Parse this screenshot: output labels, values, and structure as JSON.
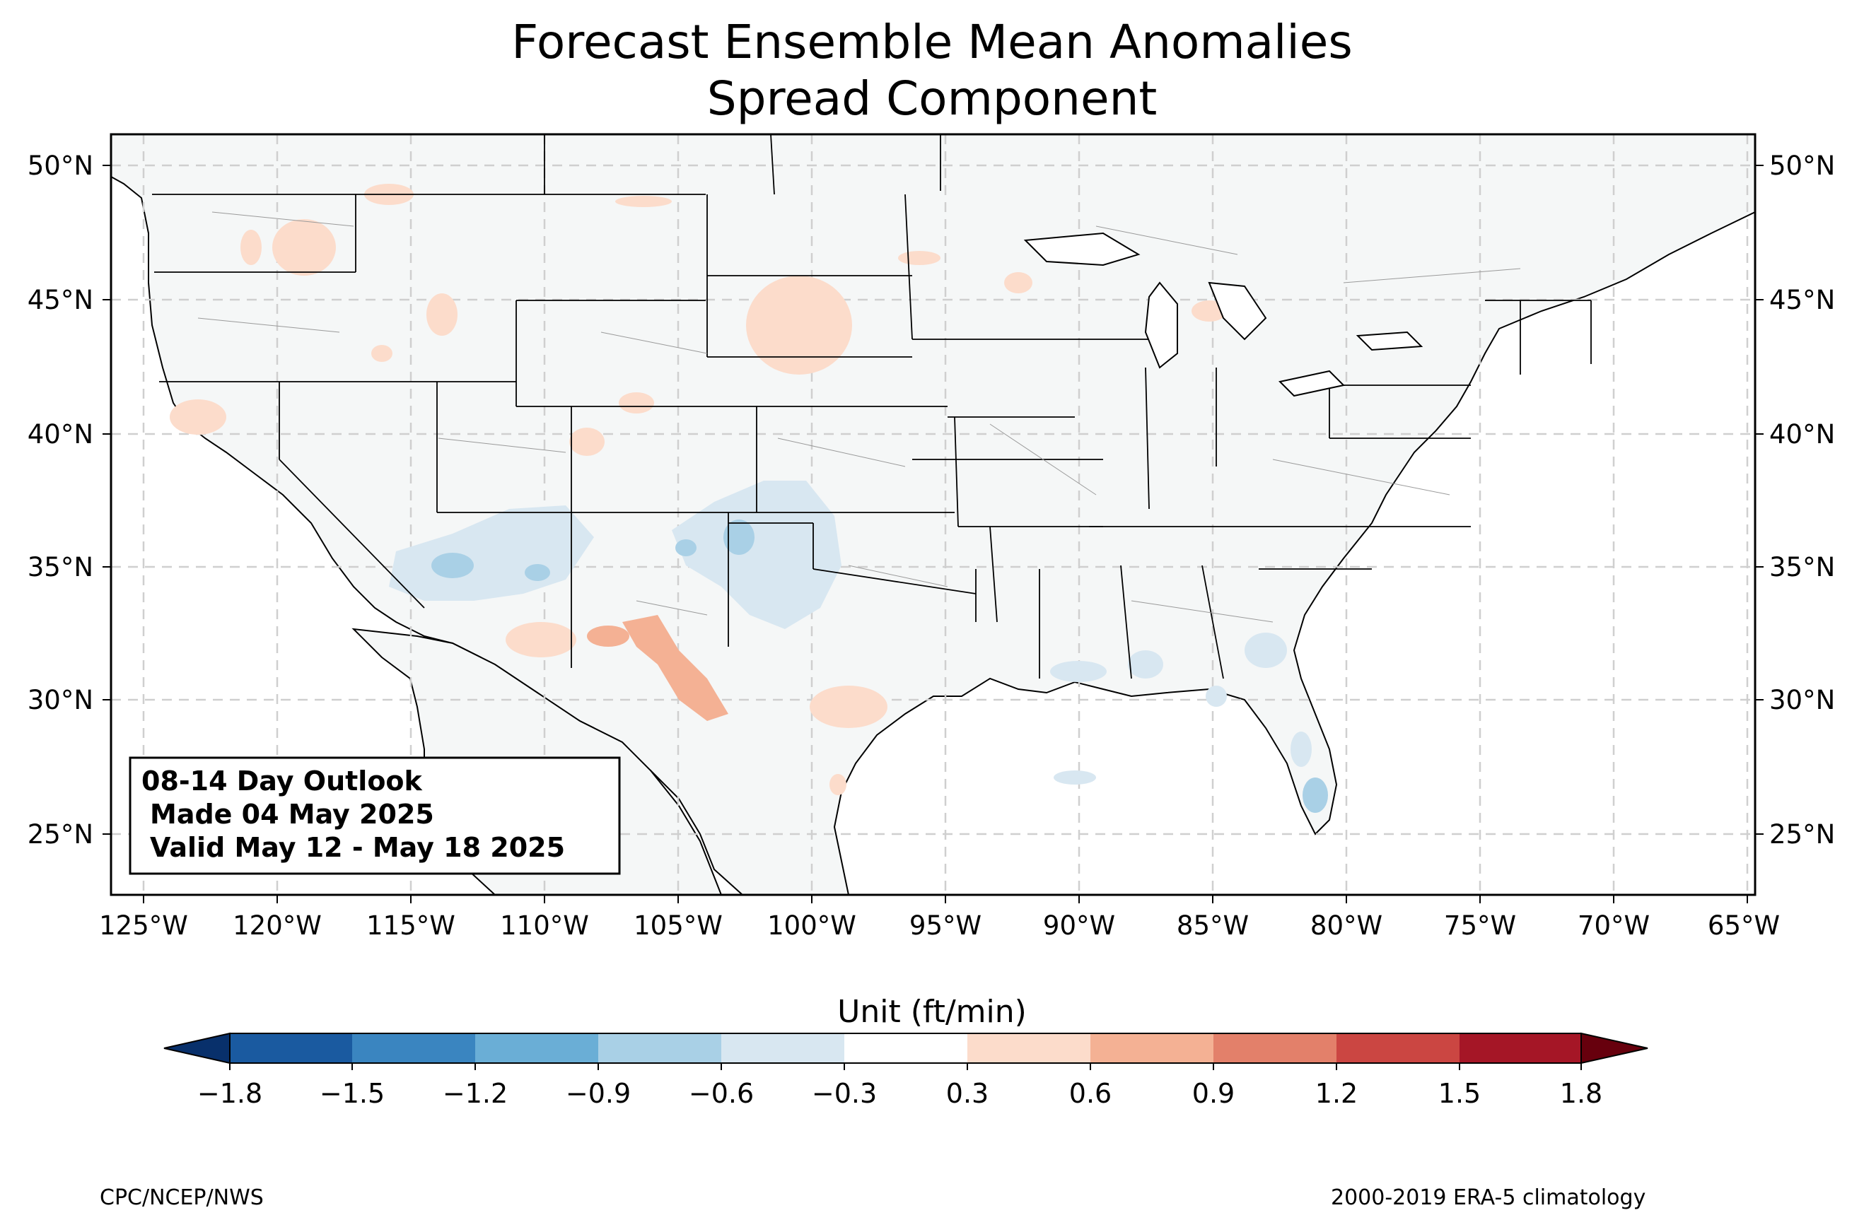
{
  "title": {
    "line1": "Forecast Ensemble Mean Anomalies",
    "line2": "Spread Component"
  },
  "info_box": {
    "line1": "08-14 Day Outlook",
    "line2": "Made 04 May 2025",
    "line3": "Valid May 12 - May 18 2025"
  },
  "map": {
    "lon_range": [
      -126.25,
      -64.75
    ],
    "lat_range": [
      22.75,
      51.25
    ],
    "lon_ticks": [
      "125°W",
      "120°W",
      "115°W",
      "110°W",
      "105°W",
      "100°W",
      "95°W",
      "90°W",
      "85°W",
      "80°W",
      "75°W",
      "70°W",
      "65°W"
    ],
    "lat_ticks": [
      "25°N",
      "30°N",
      "35°N",
      "40°N",
      "45°N",
      "50°N"
    ],
    "land_color": "#f5f7f7",
    "state_line_color": "#000000",
    "county_line_color": "#9a9a9a",
    "grid_color": "#cccccc"
  },
  "colorbar": {
    "label": "Unit (ft/min)",
    "tick_labels": [
      "−1.8",
      "−1.5",
      "−1.2",
      "−0.9",
      "−0.6",
      "−0.3",
      "0.3",
      "0.6",
      "0.9",
      "1.2",
      "1.5",
      "1.8"
    ],
    "colors": [
      "#1a5aa0",
      "#3a85c0",
      "#6aaed6",
      "#a9d0e6",
      "#d8e7f1",
      "#ffffff",
      "#fcdccb",
      "#f4b194",
      "#e3806a",
      "#cb4642",
      "#a51626"
    ],
    "under_color": "#08306b",
    "over_color": "#67000d"
  },
  "footer": {
    "left": "CPC/NCEP/NWS",
    "right": "2000-2019 ERA-5 climatology"
  }
}
